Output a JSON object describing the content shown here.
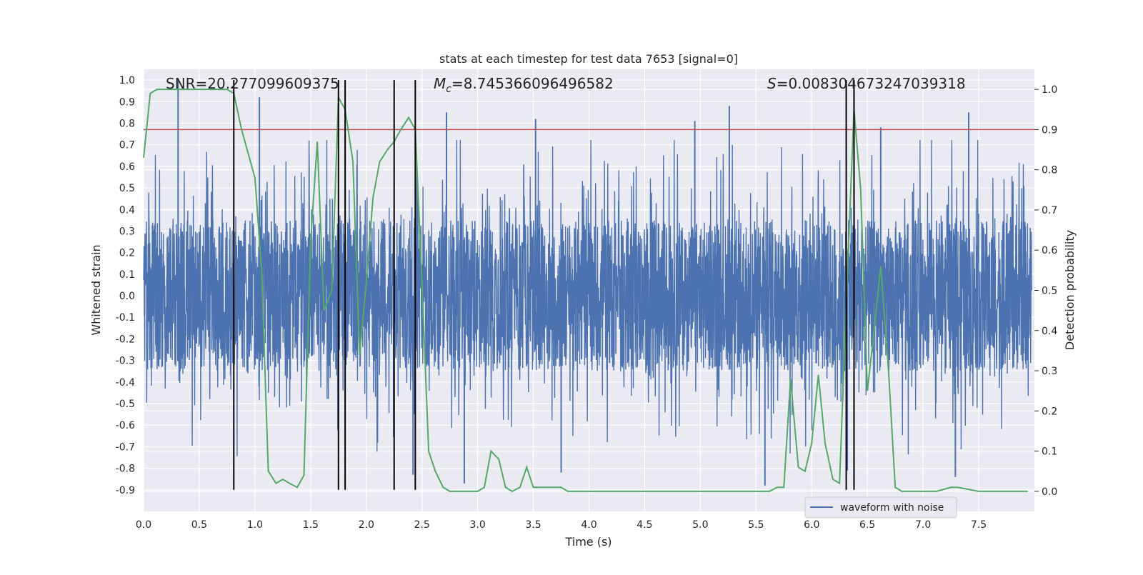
{
  "chart_data": {
    "type": "line",
    "title": "stats at each timestep for test data 7653 [signal=0]",
    "xlabel": "Time (s)",
    "ylabel_left": "Whitened strain",
    "ylabel_right": "Detection probability",
    "xlim": [
      0.0,
      8.0
    ],
    "ylim_left": [
      -1.0,
      1.05
    ],
    "ylim_right": [
      -0.05,
      1.05
    ],
    "x_ticks": [
      "0.0",
      "0.5",
      "1.0",
      "1.5",
      "2.0",
      "2.5",
      "3.0",
      "3.5",
      "4.0",
      "4.5",
      "5.0",
      "5.5",
      "6.0",
      "6.5",
      "7.0",
      "7.5"
    ],
    "y_ticks_left": [
      "1.0",
      "0.9",
      "0.8",
      "0.7",
      "0.6",
      "0.5",
      "0.4",
      "0.3",
      "0.2",
      "0.1",
      "0.0",
      "-0.1",
      "-0.2",
      "-0.3",
      "-0.4",
      "-0.5",
      "-0.6",
      "-0.7",
      "-0.8",
      "-0.9"
    ],
    "y_ticks_right": [
      "1.0",
      "0.9",
      "0.8",
      "0.7",
      "0.6",
      "0.5",
      "0.4",
      "0.3",
      "0.2",
      "0.1",
      "0.0"
    ],
    "annotations": {
      "snr": "SNR=20.277099609375",
      "mc_symbol": "M",
      "mc_sub": "c",
      "mc_value": "=8.745366096496582",
      "s_symbol": "S",
      "s_value": "=0.008304673247039318"
    },
    "threshold": {
      "axis": "right",
      "value": 0.9,
      "color": "#c44e52"
    },
    "vertical_markers": [
      0.81,
      1.75,
      1.81,
      2.25,
      2.44,
      6.31,
      6.38
    ],
    "vertical_marker_range": [
      -0.9,
      1.0
    ],
    "series": [
      {
        "name": "waveform with noise",
        "axis": "left",
        "color": "#4c72b0",
        "style": "noise",
        "amplitude_core": 0.35,
        "amplitude_peak_max": 0.88,
        "spikes": [
          [
            0.31,
            1.0
          ],
          [
            1.04,
            0.92
          ],
          [
            2.72,
            0.85
          ],
          [
            3.52,
            0.82
          ],
          [
            5.26,
            0.88
          ],
          [
            4.95,
            0.81
          ],
          [
            7.41,
            0.85
          ],
          [
            6.62,
            0.78
          ],
          [
            5.58,
            -0.88
          ],
          [
            2.88,
            -0.87
          ],
          [
            6.32,
            -0.81
          ],
          [
            7.29,
            -0.84
          ],
          [
            2.42,
            -0.83
          ],
          [
            3.75,
            -0.82
          ]
        ]
      },
      {
        "name": "",
        "axis": "right",
        "color": "#55a868",
        "style": "line",
        "x": [
          0.0,
          0.06,
          0.12,
          0.18,
          0.25,
          0.31,
          0.5,
          0.6,
          0.7,
          0.75,
          0.81,
          0.88,
          0.94,
          1.0,
          1.06,
          1.12,
          1.19,
          1.25,
          1.31,
          1.38,
          1.44,
          1.5,
          1.56,
          1.62,
          1.69,
          1.75,
          1.81,
          1.88,
          1.94,
          2.0,
          2.06,
          2.12,
          2.19,
          2.25,
          2.31,
          2.38,
          2.44,
          2.5,
          2.56,
          2.62,
          2.69,
          2.75,
          2.81,
          2.88,
          3.0,
          3.06,
          3.12,
          3.19,
          3.25,
          3.31,
          3.38,
          3.44,
          3.5,
          3.56,
          3.62,
          3.69,
          3.75,
          3.81,
          4.0,
          4.5,
          5.0,
          5.5,
          5.56,
          5.62,
          5.69,
          5.75,
          5.81,
          5.88,
          5.94,
          6.0,
          6.06,
          6.12,
          6.19,
          6.25,
          6.31,
          6.38,
          6.44,
          6.5,
          6.56,
          6.62,
          6.69,
          6.75,
          6.81,
          6.88,
          7.0,
          7.12,
          7.25,
          7.31,
          7.5,
          7.75,
          7.94
        ],
        "y": [
          0.83,
          0.99,
          1.0,
          1.0,
          1.0,
          1.0,
          1.0,
          1.0,
          1.0,
          1.0,
          0.99,
          0.9,
          0.84,
          0.78,
          0.55,
          0.05,
          0.02,
          0.03,
          0.02,
          0.01,
          0.04,
          0.62,
          0.87,
          0.45,
          0.5,
          0.98,
          0.95,
          0.82,
          0.34,
          0.52,
          0.73,
          0.82,
          0.85,
          0.87,
          0.9,
          0.93,
          0.9,
          0.52,
          0.1,
          0.05,
          0.01,
          0.0,
          0.0,
          0.0,
          0.0,
          0.01,
          0.1,
          0.08,
          0.01,
          0.0,
          0.01,
          0.06,
          0.01,
          0.01,
          0.01,
          0.01,
          0.01,
          0.0,
          0.0,
          0.0,
          0.0,
          0.0,
          0.0,
          0.0,
          0.01,
          0.01,
          0.28,
          0.06,
          0.05,
          0.12,
          0.29,
          0.12,
          0.03,
          0.02,
          0.47,
          0.95,
          0.75,
          0.25,
          0.4,
          0.56,
          0.3,
          0.01,
          0.0,
          0.0,
          0.0,
          0.0,
          0.01,
          0.01,
          0.0,
          0.0,
          0.0
        ]
      }
    ],
    "legend": {
      "placement": "lower center-right",
      "entries": [
        "waveform with noise"
      ]
    },
    "grid": true,
    "background": "#eaeaf2"
  }
}
